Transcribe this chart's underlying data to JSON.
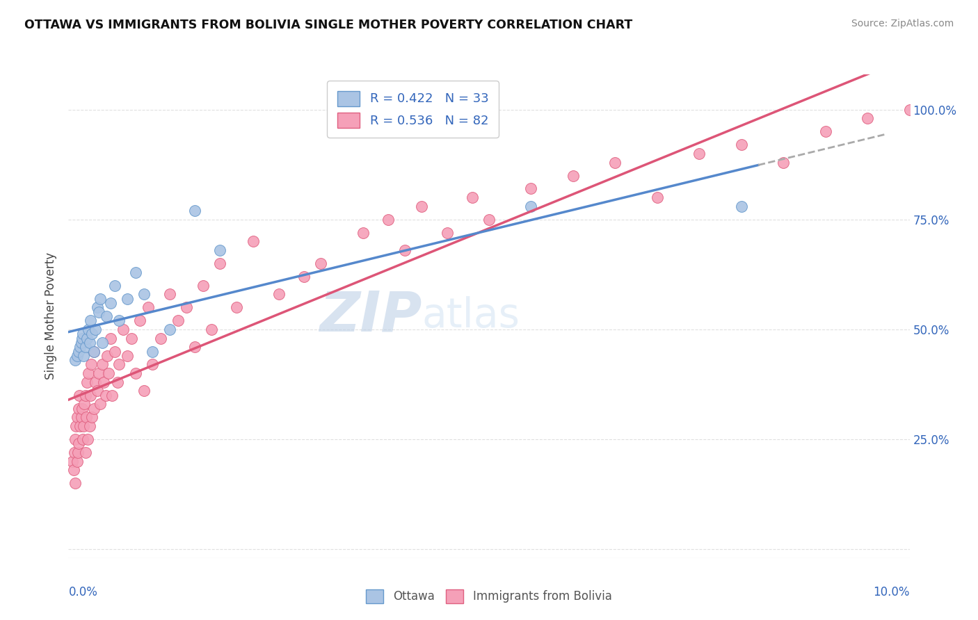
{
  "title": "OTTAWA VS IMMIGRANTS FROM BOLIVIA SINGLE MOTHER POVERTY CORRELATION CHART",
  "source": "Source: ZipAtlas.com",
  "ylabel": "Single Mother Poverty",
  "yticks_labels": [
    "",
    "25.0%",
    "50.0%",
    "75.0%",
    "100.0%"
  ],
  "ytick_vals": [
    0.0,
    0.25,
    0.5,
    0.75,
    1.0
  ],
  "xlim": [
    0.0,
    0.1
  ],
  "ylim": [
    -0.02,
    1.08
  ],
  "watermark_zip": "ZIP",
  "watermark_atlas": "atlas",
  "legend_r_ottawa": "R = 0.422",
  "legend_n_ottawa": "N = 33",
  "legend_r_bolivia": "R = 0.536",
  "legend_n_bolivia": "N = 82",
  "ottawa_color": "#aac4e4",
  "bolivia_color": "#f5a0b8",
  "ottawa_edge": "#6699cc",
  "bolivia_edge": "#e06080",
  "line_ottawa": "#5588cc",
  "line_bolivia": "#dd5577",
  "line_dashed_color": "#aaaaaa",
  "background_color": "#ffffff",
  "grid_color": "#e0e0e0",
  "ottawa_x": [
    0.0008,
    0.001,
    0.0012,
    0.0014,
    0.0015,
    0.0016,
    0.0017,
    0.0018,
    0.002,
    0.0022,
    0.0024,
    0.0025,
    0.0026,
    0.0028,
    0.003,
    0.0032,
    0.0034,
    0.0036,
    0.0038,
    0.004,
    0.0045,
    0.005,
    0.0055,
    0.006,
    0.007,
    0.008,
    0.009,
    0.01,
    0.012,
    0.015,
    0.018,
    0.055,
    0.08
  ],
  "ottawa_y": [
    0.43,
    0.44,
    0.45,
    0.46,
    0.47,
    0.48,
    0.49,
    0.44,
    0.46,
    0.48,
    0.5,
    0.47,
    0.52,
    0.49,
    0.45,
    0.5,
    0.55,
    0.54,
    0.57,
    0.47,
    0.53,
    0.56,
    0.6,
    0.52,
    0.57,
    0.63,
    0.58,
    0.45,
    0.5,
    0.77,
    0.68,
    0.78,
    0.78
  ],
  "bolivia_x": [
    0.0005,
    0.0006,
    0.0007,
    0.0008,
    0.0008,
    0.0009,
    0.001,
    0.001,
    0.0011,
    0.0012,
    0.0012,
    0.0013,
    0.0014,
    0.0015,
    0.0016,
    0.0017,
    0.0018,
    0.0019,
    0.002,
    0.002,
    0.0021,
    0.0022,
    0.0023,
    0.0024,
    0.0025,
    0.0026,
    0.0027,
    0.0028,
    0.003,
    0.003,
    0.0032,
    0.0034,
    0.0036,
    0.0038,
    0.004,
    0.0042,
    0.0044,
    0.0046,
    0.0048,
    0.005,
    0.0052,
    0.0055,
    0.0058,
    0.006,
    0.0065,
    0.007,
    0.0075,
    0.008,
    0.0085,
    0.009,
    0.0095,
    0.01,
    0.011,
    0.012,
    0.013,
    0.014,
    0.015,
    0.016,
    0.017,
    0.018,
    0.02,
    0.022,
    0.025,
    0.028,
    0.03,
    0.035,
    0.038,
    0.04,
    0.042,
    0.045,
    0.048,
    0.05,
    0.055,
    0.06,
    0.065,
    0.07,
    0.075,
    0.08,
    0.085,
    0.09,
    0.095,
    0.1
  ],
  "bolivia_y": [
    0.2,
    0.18,
    0.22,
    0.25,
    0.15,
    0.28,
    0.3,
    0.2,
    0.22,
    0.32,
    0.24,
    0.35,
    0.28,
    0.3,
    0.32,
    0.25,
    0.28,
    0.33,
    0.35,
    0.22,
    0.3,
    0.38,
    0.25,
    0.4,
    0.28,
    0.35,
    0.42,
    0.3,
    0.45,
    0.32,
    0.38,
    0.36,
    0.4,
    0.33,
    0.42,
    0.38,
    0.35,
    0.44,
    0.4,
    0.48,
    0.35,
    0.45,
    0.38,
    0.42,
    0.5,
    0.44,
    0.48,
    0.4,
    0.52,
    0.36,
    0.55,
    0.42,
    0.48,
    0.58,
    0.52,
    0.55,
    0.46,
    0.6,
    0.5,
    0.65,
    0.55,
    0.7,
    0.58,
    0.62,
    0.65,
    0.72,
    0.75,
    0.68,
    0.78,
    0.72,
    0.8,
    0.75,
    0.82,
    0.85,
    0.88,
    0.8,
    0.9,
    0.92,
    0.88,
    0.95,
    0.98,
    1.0
  ]
}
